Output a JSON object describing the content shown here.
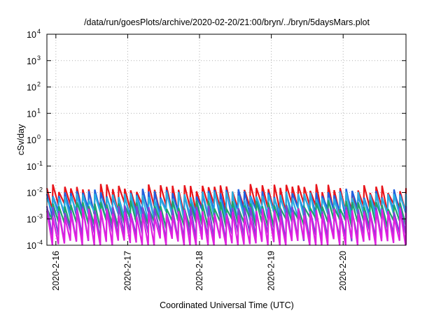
{
  "chart_data": {
    "type": "line",
    "title": "/data/run/goesPlots/archive/2020-02-20/21:00/bryn/../bryn/5daysMars.plot",
    "xlabel": "Coordinated Universal Time (UTC)",
    "ylabel": "cSv/day",
    "x_scale": "date",
    "y_scale": "log",
    "xlim": [
      "2020-02-15T21:00",
      "2020-02-20T21:00"
    ],
    "ylim": [
      0.0001,
      10000
    ],
    "grid": true,
    "legend": "none",
    "x_ticks": [
      "2020-2-16",
      "2020-2-17",
      "2020-2-18",
      "2020-2-19",
      "2020-2-20"
    ],
    "y_ticks": [
      {
        "base": "10",
        "exp": "-4",
        "value": 0.0001
      },
      {
        "base": "10",
        "exp": "-3",
        "value": 0.001
      },
      {
        "base": "10",
        "exp": "-2",
        "value": 0.01
      },
      {
        "base": "10",
        "exp": "-1",
        "value": 0.1
      },
      {
        "base": "10",
        "exp": "0",
        "value": 1
      },
      {
        "base": "10",
        "exp": "1",
        "value": 10
      },
      {
        "base": "10",
        "exp": "2",
        "value": 100
      },
      {
        "base": "10",
        "exp": "3",
        "value": 1000
      },
      {
        "base": "10",
        "exp": "4",
        "value": 10000
      }
    ],
    "series": [
      {
        "color": "#e8151b",
        "peak": 0.014,
        "trough": 0.0025,
        "jitter_seed": 1
      },
      {
        "color": "#2060e0",
        "peak": 0.0095,
        "trough": 0.0016,
        "jitter_seed": 2
      },
      {
        "color": "#29aee0",
        "peak": 0.0075,
        "trough": 0.0012,
        "jitter_seed": 3
      },
      {
        "color": "#1fa36b",
        "peak": 0.0035,
        "trough": 0.0007,
        "jitter_seed": 4
      },
      {
        "color": "#8040d8",
        "peak": 0.0022,
        "trough": 0.00022,
        "jitter_seed": 5
      },
      {
        "color": "#e020e0",
        "peak": 0.0017,
        "trough": 0.00011,
        "jitter_seed": 6
      }
    ],
    "cycle_hours": 2.0
  }
}
